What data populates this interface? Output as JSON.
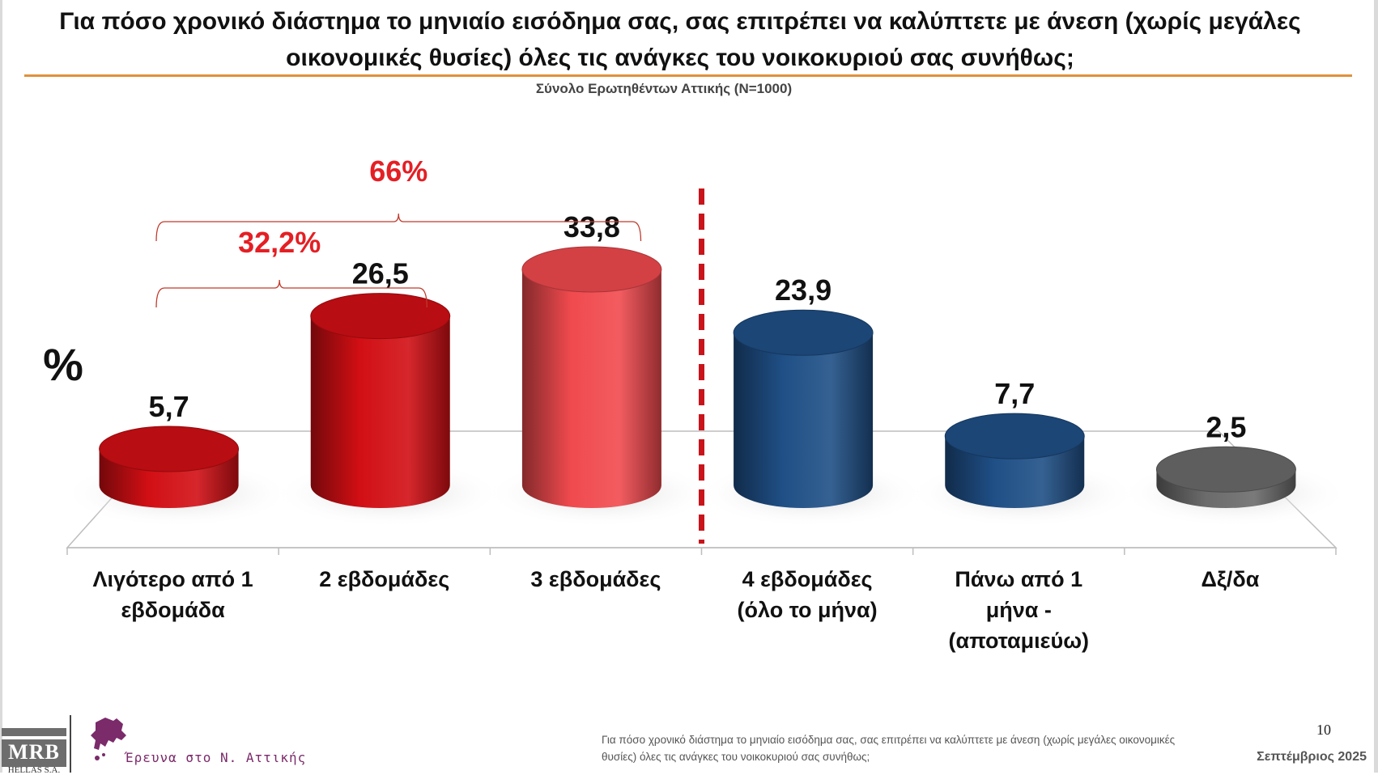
{
  "header": {
    "title": "Για πόσο χρονικό διάστημα το μηνιαίο εισόδημα σας, σας επιτρέπει να καλύπτετε με άνεση (χωρίς μεγάλες οικονομικές θυσίες) όλες τις ανάγκες του νοικοκυριού σας συνήθως;",
    "subtitle": "Σύνολο Ερωτηθέντων Αττικής (N=1000)"
  },
  "chart_data": {
    "type": "bar",
    "unit_label": "%",
    "categories": [
      [
        "Λιγότερο από 1",
        "εβδομάδα"
      ],
      [
        "2 εβδομάδες"
      ],
      [
        "3 εβδομάδες"
      ],
      [
        "4 εβδομάδες",
        "(όλο το μήνα)"
      ],
      [
        "Πάνω από 1",
        "μήνα -",
        "(αποταμιεύω)"
      ],
      [
        "Δξ/δα"
      ]
    ],
    "values": [
      5.7,
      26.5,
      33.8,
      23.9,
      7.7,
      2.5
    ],
    "value_labels": [
      "5,7",
      "26,5",
      "33,8",
      "23,9",
      "7,7",
      "2,5"
    ],
    "bar_colors": [
      "#d10f14",
      "#d10f14",
      "#f04a4e",
      "#1f4f86",
      "#1f4f86",
      "#6b6b6b"
    ],
    "groups": [
      {
        "label": "32,2%",
        "from": 0,
        "to": 1
      },
      {
        "label": "66%",
        "from": 0,
        "to": 2
      }
    ],
    "divider_after_index": 2,
    "colors": {
      "group_label": "#e41f24",
      "divider": "#c8141a"
    }
  },
  "footer": {
    "logo_main": "MRB",
    "logo_sub": "HELLAS S.A.",
    "attica_text": "Έρευνα στο Ν. Αττικής",
    "question": "Για πόσο χρονικό διάστημα το μηνιαίο εισόδημα σας, σας επιτρέπει να καλύπτετε με άνεση (χωρίς μεγάλες οικονομικές θυσίες) όλες τις ανάγκες του νοικοκυριού σας συνήθως;",
    "page_number": "10",
    "date": "Σεπτέμβριος 2025"
  }
}
